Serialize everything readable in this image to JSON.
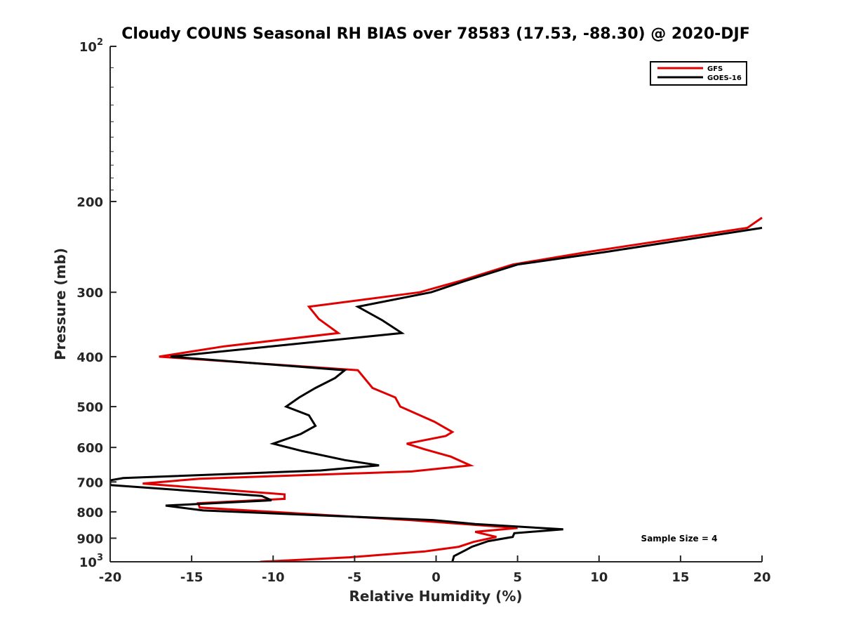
{
  "chart_data": {
    "type": "line",
    "title": "Cloudy COUNS Seasonal RH BIAS over 78583 (17.53, -88.30) @ 2020-DJF",
    "xlabel": "Relative Humidity (%)",
    "ylabel": "Pressure (mb)",
    "xlim": [
      -20,
      20
    ],
    "ylim": [
      100,
      1000
    ],
    "yscale": "log",
    "y_reversed": true,
    "xticks": [
      -20,
      -15,
      -10,
      -5,
      0,
      5,
      10,
      15,
      20
    ],
    "xtick_labels": [
      "-20",
      "-15",
      "-10",
      "-5",
      "0",
      "5",
      "10",
      "15",
      "20"
    ],
    "yticks": [
      100,
      200,
      300,
      400,
      500,
      600,
      700,
      800,
      900,
      1000
    ],
    "ytick_labels": [
      {
        "base": "10",
        "exp": "2"
      },
      {
        "base": "200"
      },
      {
        "base": "300"
      },
      {
        "base": "400"
      },
      {
        "base": "500"
      },
      {
        "base": "600"
      },
      {
        "base": "700"
      },
      {
        "base": "800"
      },
      {
        "base": "900"
      },
      {
        "base": "10",
        "exp": "3"
      }
    ],
    "legend": {
      "position": "top-right"
    },
    "annotation": "Sample Size = 4",
    "series": [
      {
        "name": "GFS",
        "color": "#e00000",
        "points": [
          [
            20.0,
            215
          ],
          [
            19.1,
            225
          ],
          [
            9.5,
            250
          ],
          [
            4.7,
            265
          ],
          [
            1.5,
            285
          ],
          [
            -1.0,
            300
          ],
          [
            -7.8,
            320
          ],
          [
            -7.2,
            338
          ],
          [
            -6.0,
            360
          ],
          [
            -13.0,
            382
          ],
          [
            -17.0,
            400
          ],
          [
            -4.8,
            425
          ],
          [
            -3.9,
            460
          ],
          [
            -2.5,
            480
          ],
          [
            -2.2,
            500
          ],
          [
            -0.1,
            535
          ],
          [
            1.0,
            560
          ],
          [
            0.6,
            570
          ],
          [
            -1.8,
            590
          ],
          [
            -0.7,
            605
          ],
          [
            0.9,
            625
          ],
          [
            2.1,
            650
          ],
          [
            -1.5,
            668
          ],
          [
            -14.5,
            690
          ],
          [
            -18.0,
            705
          ],
          [
            -9.3,
            740
          ],
          [
            -9.3,
            755
          ],
          [
            -14.6,
            770
          ],
          [
            -14.5,
            785
          ],
          [
            -1.6,
            830
          ],
          [
            5.0,
            860
          ],
          [
            2.4,
            875
          ],
          [
            3.7,
            895
          ],
          [
            2.3,
            915
          ],
          [
            1.4,
            935
          ],
          [
            -0.7,
            955
          ],
          [
            -5.3,
            980
          ],
          [
            -10.8,
            1000
          ]
        ]
      },
      {
        "name": "GOES-16",
        "color": "#000000",
        "points": [
          [
            20.0,
            225
          ],
          [
            10.6,
            250
          ],
          [
            5.0,
            265
          ],
          [
            1.8,
            285
          ],
          [
            -0.3,
            300
          ],
          [
            -4.8,
            320
          ],
          [
            -3.3,
            340
          ],
          [
            -2.1,
            360
          ],
          [
            -10.1,
            382
          ],
          [
            -16.3,
            400
          ],
          [
            -5.6,
            425
          ],
          [
            -6.2,
            440
          ],
          [
            -7.4,
            460
          ],
          [
            -8.4,
            480
          ],
          [
            -9.2,
            500
          ],
          [
            -7.8,
            520
          ],
          [
            -7.4,
            545
          ],
          [
            -8.3,
            565
          ],
          [
            -10.0,
            590
          ],
          [
            -8.2,
            610
          ],
          [
            -5.6,
            635
          ],
          [
            -3.5,
            650
          ],
          [
            -7.1,
            665
          ],
          [
            -19.2,
            688
          ],
          [
            -20.0,
            695
          ],
          [
            -20.0,
            710
          ],
          [
            -10.7,
            745
          ],
          [
            -10.1,
            760
          ],
          [
            -16.6,
            778
          ],
          [
            -14.3,
            795
          ],
          [
            -0.2,
            830
          ],
          [
            2.4,
            845
          ],
          [
            7.8,
            865
          ],
          [
            4.8,
            880
          ],
          [
            4.7,
            895
          ],
          [
            3.2,
            912
          ],
          [
            2.2,
            935
          ],
          [
            1.8,
            950
          ],
          [
            1.1,
            975
          ],
          [
            1.0,
            1000
          ]
        ]
      }
    ]
  }
}
